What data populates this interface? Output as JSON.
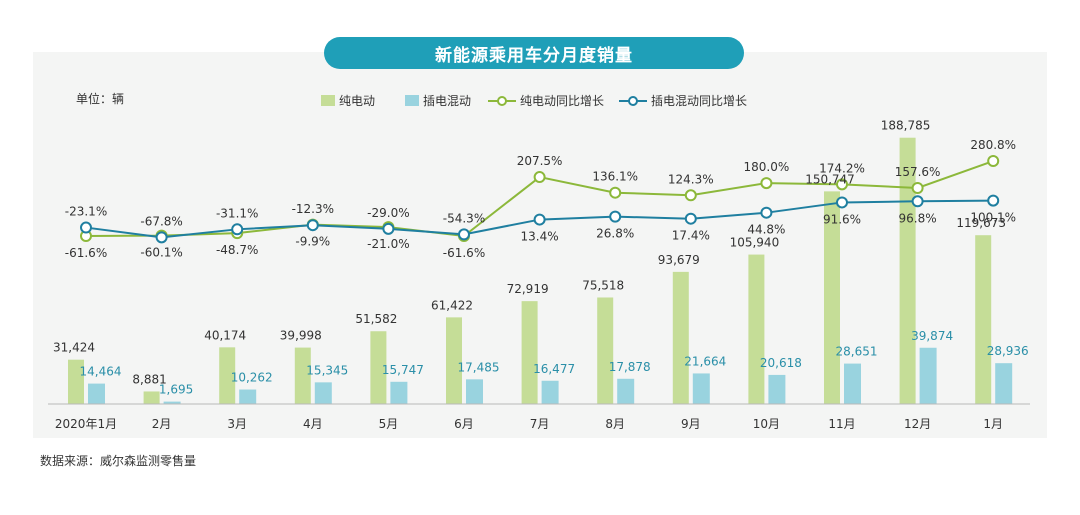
{
  "title": "新能源乘用车分月度销量",
  "unit_label": "单位：辆",
  "source": "数据来源：威尔森监测零售量",
  "colors": {
    "bev": "#c5dd97",
    "phev": "#99d3df",
    "bev_yoy": "#8cb83a",
    "phev_yoy": "#1f7fa0",
    "accent": "#1f9fb8"
  },
  "chart_data": {
    "type": "bar",
    "categories": [
      "2020年1月",
      "2月",
      "3月",
      "4月",
      "5月",
      "6月",
      "7月",
      "8月",
      "9月",
      "10月",
      "11月",
      "12月",
      "1月"
    ],
    "series": [
      {
        "name": "纯电动",
        "type": "bar",
        "values": [
          31424,
          8881,
          40174,
          39998,
          51582,
          61422,
          72919,
          75518,
          93679,
          105940,
          150747,
          188785,
          119673
        ],
        "labels": [
          "31,424",
          "8,881",
          "40,174",
          "39,998",
          "51,582",
          "61,422",
          "72,919",
          "75,518",
          "93,679",
          "105,940",
          "150,747",
          "188,785",
          "119,673"
        ]
      },
      {
        "name": "插电混动",
        "type": "bar",
        "values": [
          14464,
          1695,
          10262,
          15345,
          15747,
          17485,
          16477,
          17878,
          21664,
          20618,
          28651,
          39874,
          28936
        ],
        "labels": [
          "14,464",
          "1,695",
          "10,262",
          "15,345",
          "15,747",
          "17,485",
          "16,477",
          "17,878",
          "21,664",
          "20,618",
          "28,651",
          "39,874",
          "28,936"
        ]
      },
      {
        "name": "纯电动同比增长",
        "type": "line",
        "values": [
          -61.6,
          -60.1,
          -48.7,
          -9.9,
          -21.0,
          -61.6,
          207.5,
          136.1,
          124.3,
          180.0,
          174.2,
          157.6,
          280.8
        ],
        "labels": [
          "-61.6%",
          "-60.1%",
          "-48.7%",
          "-9.9%",
          "-21.0%",
          "-61.6%",
          "207.5%",
          "136.1%",
          "124.3%",
          "180.0%",
          "174.2%",
          "157.6%",
          "280.8%"
        ]
      },
      {
        "name": "插电混动同比增长",
        "type": "line",
        "values": [
          -23.1,
          -67.8,
          -31.1,
          -12.3,
          -29.0,
          -54.3,
          13.4,
          26.8,
          17.4,
          44.8,
          91.6,
          96.8,
          100.1
        ],
        "labels": [
          "-23.1%",
          "-67.8%",
          "-31.1%",
          "-12.3%",
          "-29.0%",
          "-54.3%",
          "13.4%",
          "26.8%",
          "17.4%",
          "44.8%",
          "91.6%",
          "96.8%",
          "100.1%"
        ]
      }
    ],
    "legend_position": "top-center",
    "grid": false
  }
}
